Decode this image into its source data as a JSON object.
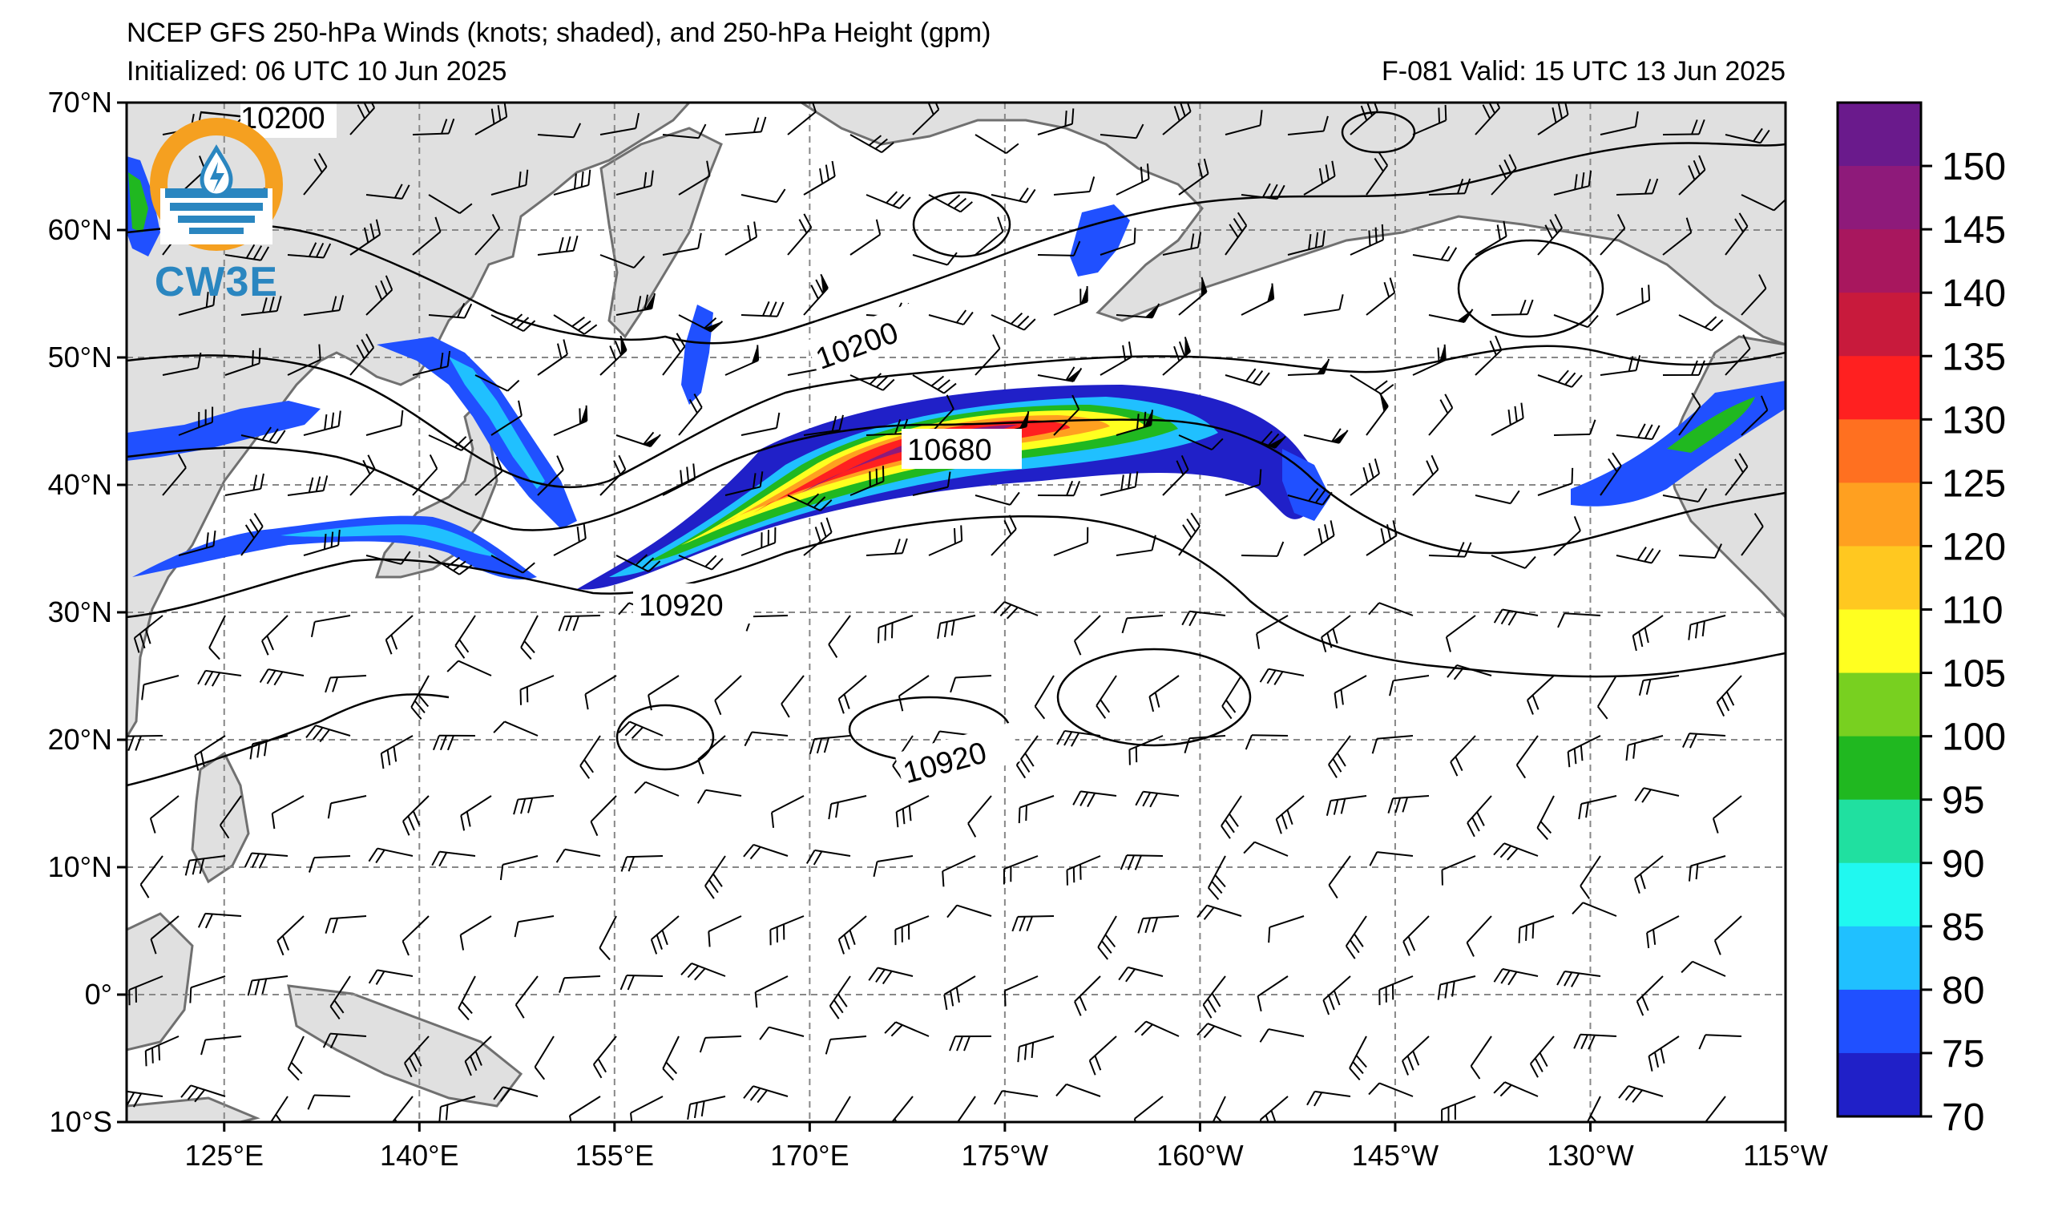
{
  "header": {
    "title": "NCEP GFS 250-hPa Winds (knots; shaded), and 250-hPa Height (gpm)",
    "initialized": "Initialized: 06 UTC 10 Jun 2025",
    "valid": "F-081  Valid: 15 UTC 13 Jun 2025"
  },
  "logo": {
    "text": "CW3E"
  },
  "axes": {
    "lat_labels": [
      "70°N",
      "60°N",
      "50°N",
      "40°N",
      "30°N",
      "20°N",
      "10°N",
      "0°",
      "10°S"
    ],
    "lon_labels": [
      "125°E",
      "140°E",
      "155°E",
      "170°E",
      "175°W",
      "160°W",
      "145°W",
      "130°W",
      "115°W"
    ]
  },
  "contour_labels": [
    "10200",
    "10200",
    "10680",
    "10920",
    "10920"
  ],
  "colorbar": {
    "labels": [
      "150",
      "145",
      "140",
      "135",
      "130",
      "125",
      "120",
      "110",
      "105",
      "100",
      "95",
      "90",
      "85",
      "80",
      "75",
      "70"
    ],
    "colors": [
      "#6a1a8c",
      "#8e1a7a",
      "#a8175e",
      "#c81a3c",
      "#ff2020",
      "#ff7020",
      "#ffa020",
      "#ffc820",
      "#ffff20",
      "#78d020",
      "#20b820",
      "#20e0a0",
      "#20f8f0",
      "#20c0ff",
      "#2050ff",
      "#2020c8"
    ]
  },
  "colors": {
    "land": "#e0e0e0",
    "coast": "#707070",
    "grid": "#888888",
    "contour": "#000000"
  }
}
